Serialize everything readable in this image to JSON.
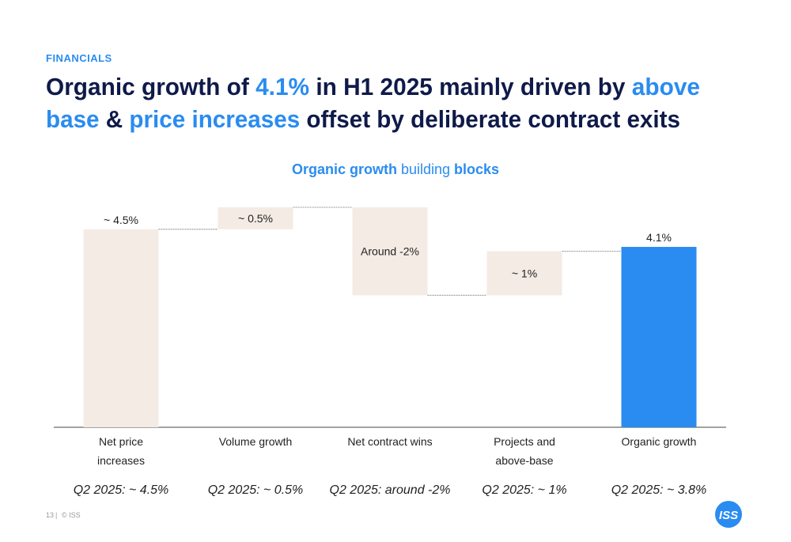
{
  "section": "FINANCIALS",
  "headline": [
    [
      {
        "text": "Organic growth of ",
        "color": "#0f1a4a"
      },
      {
        "text": "4.1%",
        "color": "#2a8cf0"
      },
      {
        "text": " in H1 2025 mainly driven by ",
        "color": "#0f1a4a"
      },
      {
        "text": "above",
        "color": "#2a8cf0"
      }
    ],
    [
      {
        "text": "base",
        "color": "#2a8cf0"
      },
      {
        "text": " & ",
        "color": "#0f1a4a"
      },
      {
        "text": "price increases",
        "color": "#2a8cf0"
      },
      {
        "text": " offset by deliberate contract exits",
        "color": "#0f1a4a"
      }
    ]
  ],
  "chart_data": {
    "type": "waterfall",
    "title": [
      {
        "text": "Organic growth ",
        "bold": true
      },
      {
        "text": "building ",
        "bold": false
      },
      {
        "text": "blocks",
        "bold": true
      }
    ],
    "categories": [
      "Net price increases",
      "Volume growth",
      "Net contract wins",
      "Projects and above-base",
      "Organic growth"
    ],
    "values": [
      4.5,
      0.5,
      -2,
      1,
      4.1
    ],
    "value_labels": [
      "~ 4.5%",
      "~ 0.5%",
      "Around -2%",
      "~ 1%",
      "4.1%"
    ],
    "measure": [
      "relative",
      "relative",
      "relative",
      "relative",
      "total"
    ],
    "colors": [
      "#f3ebe4",
      "#f3ebe4",
      "#f3ebe4",
      "#f3ebe4",
      "#2a8cf0"
    ],
    "notes": [
      "Q2 2025: ~ 4.5%",
      "Q2 2025: ~ 0.5%",
      "Q2 2025: around -2%",
      "Q2 2025: ~ 1%",
      "Q2 2025: ~ 3.8%"
    ]
  },
  "footer": {
    "page": "13",
    "copyright": "© ISS",
    "logo": "ISS"
  }
}
